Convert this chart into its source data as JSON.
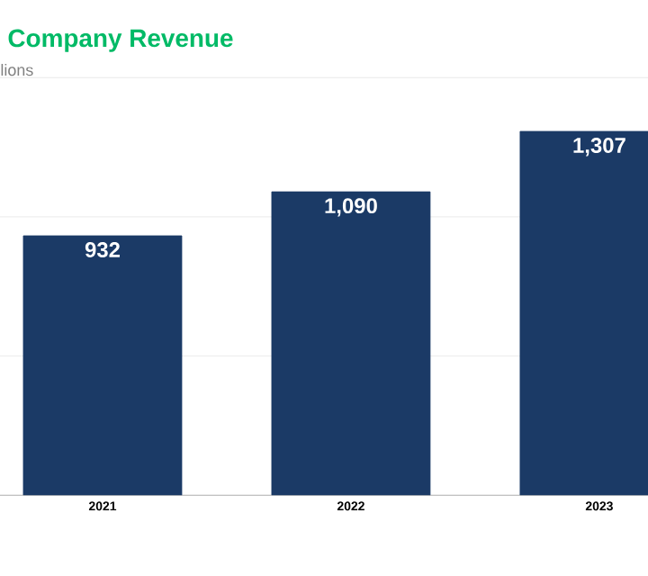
{
  "chart_data": {
    "type": "bar",
    "title": "Company Revenue",
    "subtitle": "lions",
    "categories": [
      "2021",
      "2022",
      "2023"
    ],
    "values": [
      932,
      1090,
      1307
    ],
    "value_labels": [
      "932",
      "1,090",
      "1,307"
    ],
    "color": "#1b3a66",
    "ylim": [
      0,
      1500
    ],
    "yticks": [
      {
        "value": 0,
        "label": null
      },
      {
        "value": 500,
        "label": null
      },
      {
        "value": 1000,
        "label": null
      },
      {
        "value": 1500,
        "label": null
      }
    ],
    "grid": "y",
    "tick_labels": "x"
  }
}
